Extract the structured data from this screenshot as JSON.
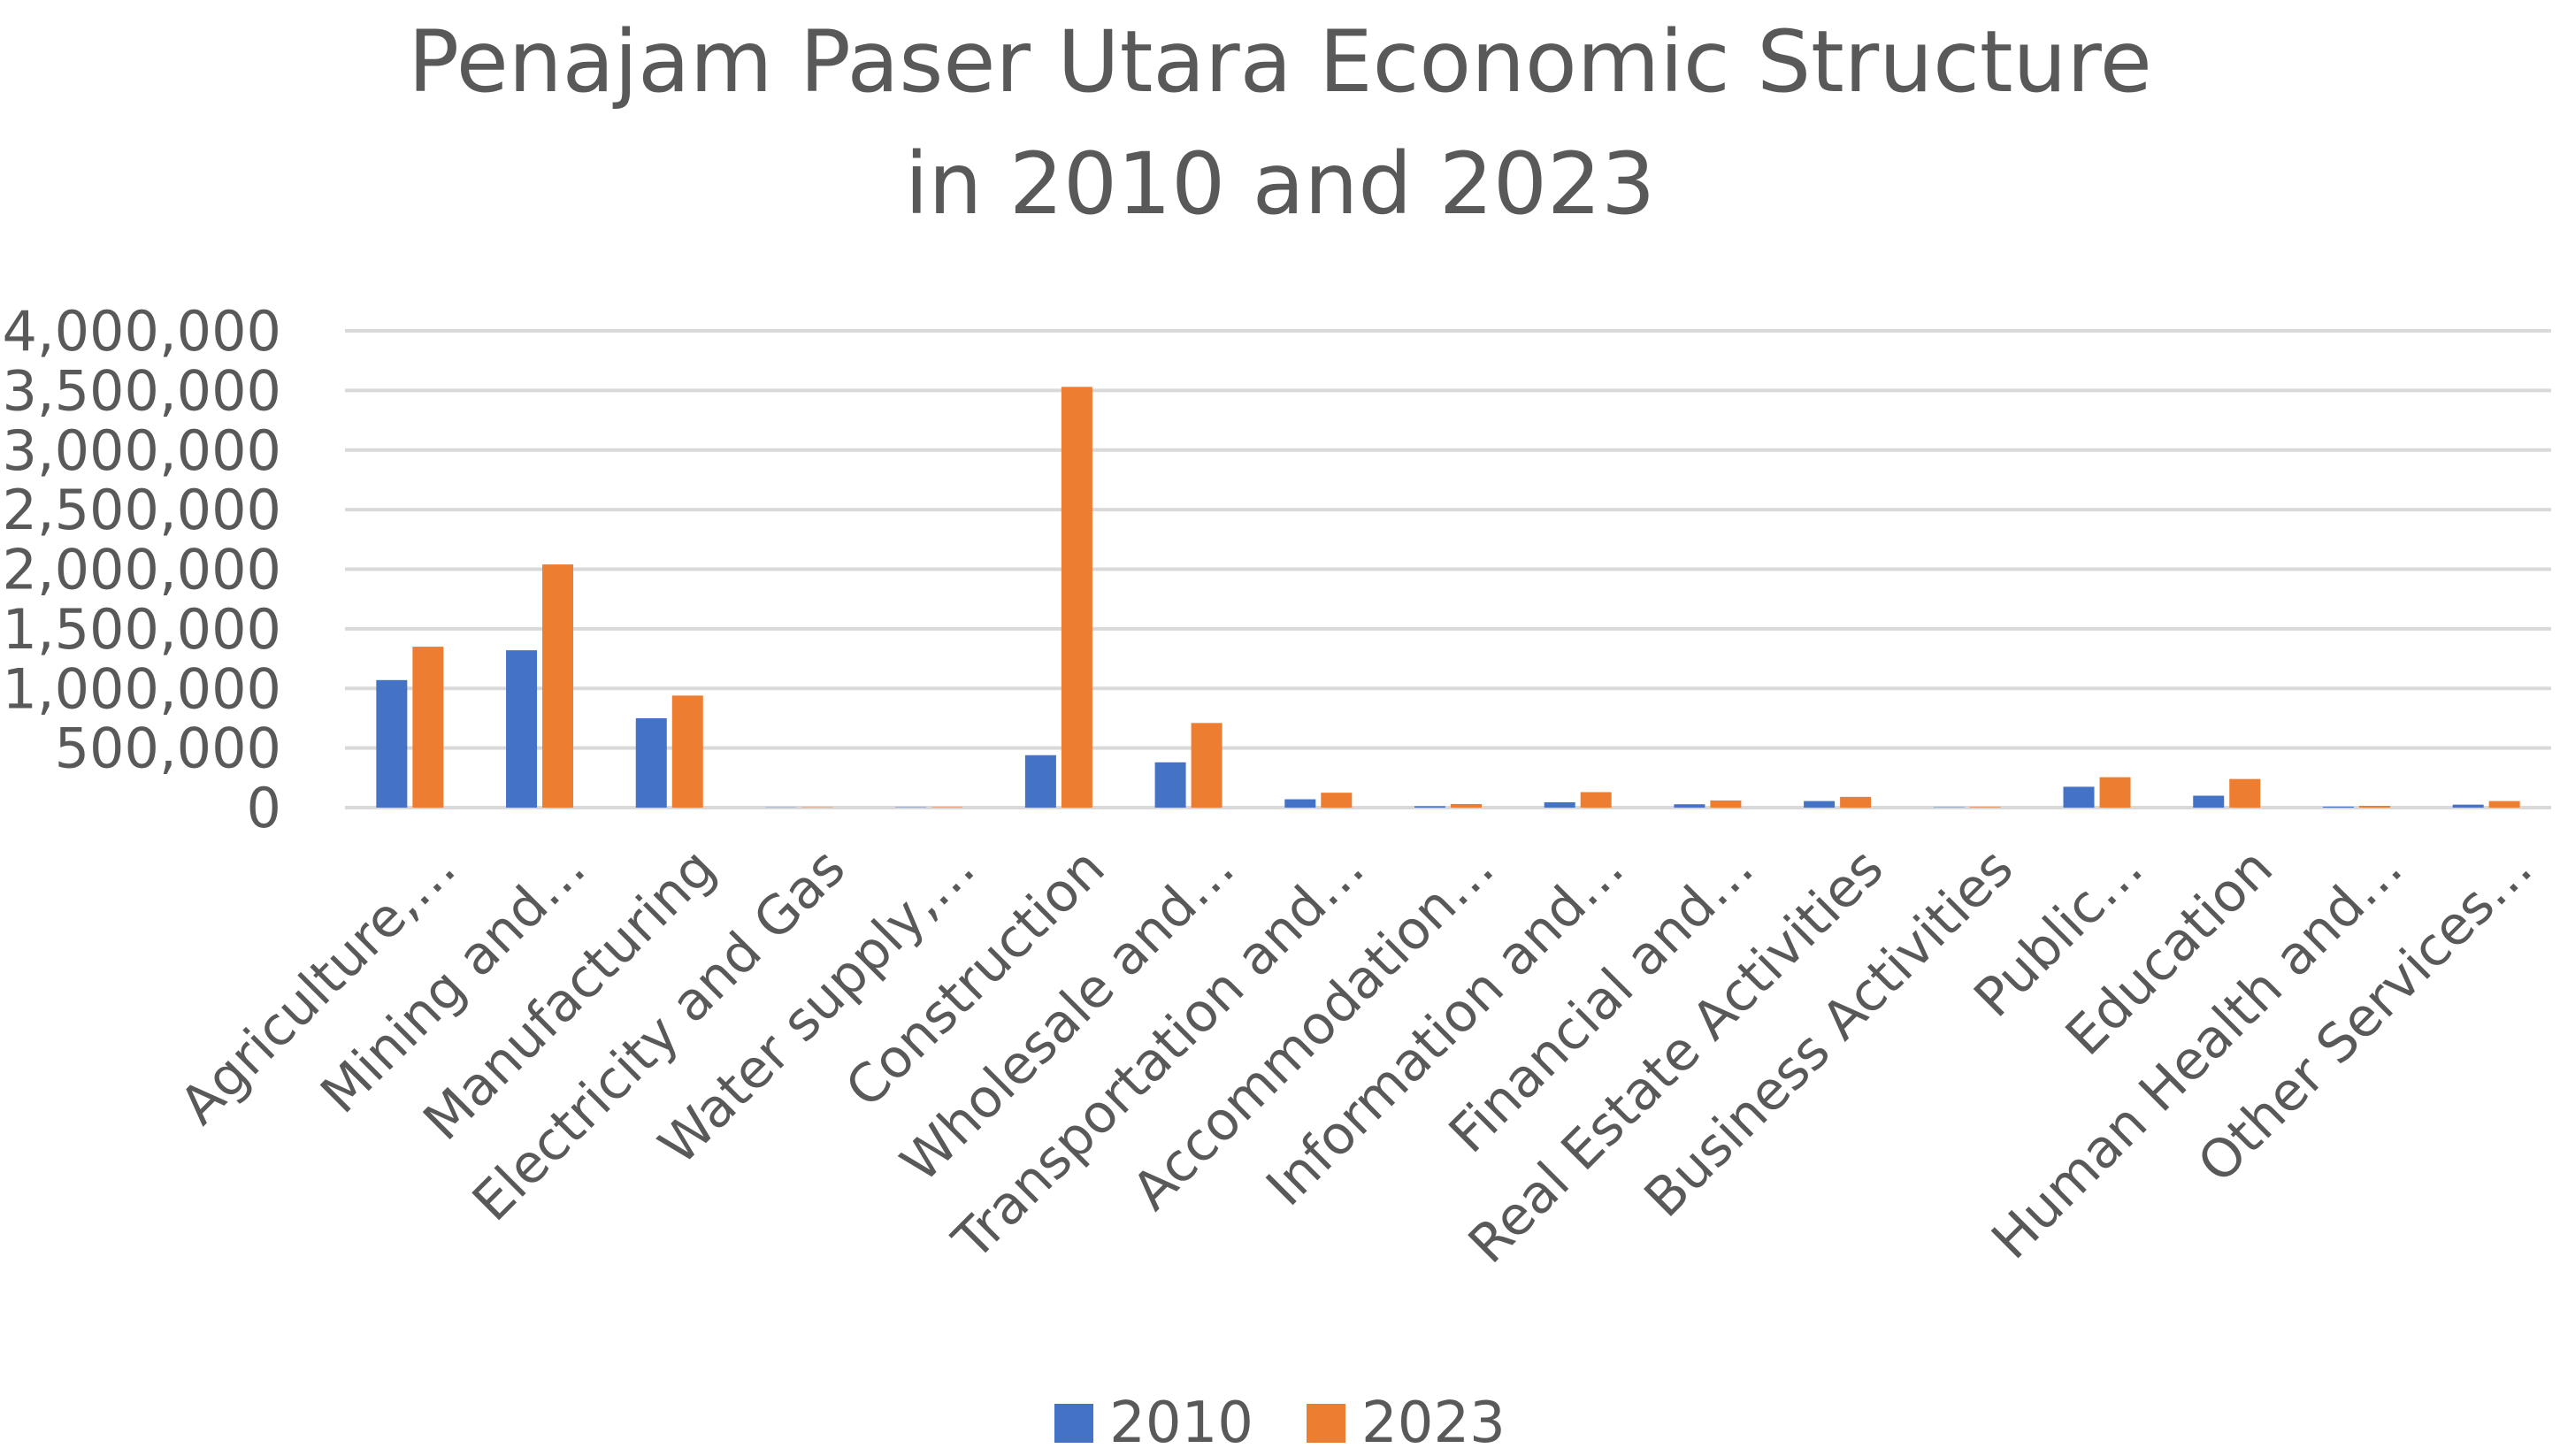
{
  "chart_data": {
    "type": "bar",
    "title": "Penajam Paser Utara Economic Structure in 2010 and 2023",
    "title_lines": [
      "Penajam Paser Utara Economic Structure",
      "in 2010 and 2023"
    ],
    "xlabel": "",
    "ylabel": "",
    "ylim": [
      0,
      4000000
    ],
    "yticks": [
      0,
      500000,
      1000000,
      1500000,
      2000000,
      2500000,
      3000000,
      3500000,
      4000000
    ],
    "ytick_labels": [
      "0",
      "500,000",
      "1,000,000",
      "1,500,000",
      "2,000,000",
      "2,500,000",
      "3,000,000",
      "3,500,000",
      "4,000,000"
    ],
    "grid": true,
    "legend_position": "bottom",
    "categories": [
      "Agriculture,…",
      "Mining and…",
      "Manufacturing",
      "Electricity and Gas",
      "Water supply,…",
      "Construction",
      "Wholesale and…",
      "Transportation and…",
      "Accommodation…",
      "Information and…",
      "Financial and…",
      "Real Estate Activities",
      "Business Activities",
      "Public…",
      "Education",
      "Human Health and…",
      "Other Services…"
    ],
    "series": [
      {
        "name": "2010",
        "color": "#4472C4",
        "values": [
          1070000,
          1320000,
          750000,
          2000,
          3000,
          440000,
          380000,
          70000,
          12000,
          45000,
          28000,
          55000,
          3000,
          175000,
          100000,
          8000,
          25000
        ]
      },
      {
        "name": "2023",
        "color": "#ED7D31",
        "values": [
          1350000,
          2040000,
          940000,
          3000,
          4000,
          3530000,
          710000,
          125000,
          30000,
          130000,
          60000,
          90000,
          5000,
          255000,
          240000,
          15000,
          55000
        ]
      }
    ]
  }
}
